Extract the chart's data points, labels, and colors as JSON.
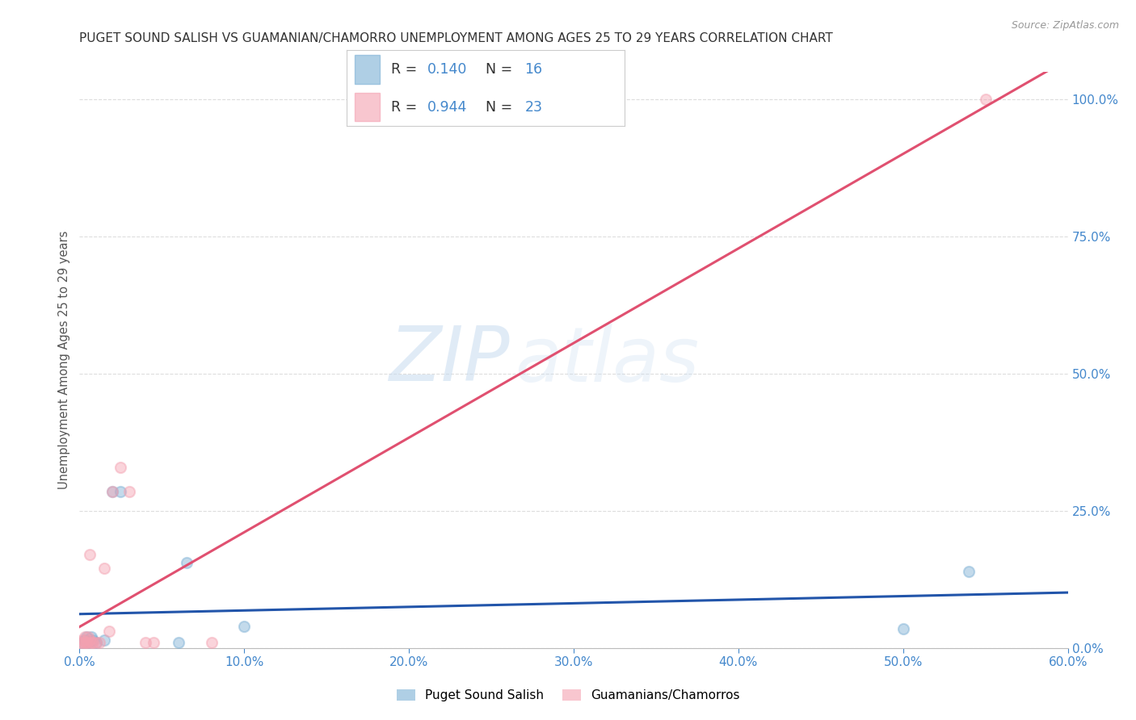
{
  "title": "PUGET SOUND SALISH VS GUAMANIAN/CHAMORRO UNEMPLOYMENT AMONG AGES 25 TO 29 YEARS CORRELATION CHART",
  "source": "Source: ZipAtlas.com",
  "ylabel": "Unemployment Among Ages 25 to 29 years",
  "watermark_zip": "ZIP",
  "watermark_atlas": "atlas",
  "legend_entries": [
    "Puget Sound Salish",
    "Guamanians/Chamorros"
  ],
  "legend_r_n": [
    {
      "R": "0.140",
      "N": "16"
    },
    {
      "R": "0.944",
      "N": "23"
    }
  ],
  "blue_color": "#7BAFD4",
  "pink_color": "#F4A0B0",
  "blue_line_color": "#2255AA",
  "pink_line_color": "#E05070",
  "title_color": "#333333",
  "axis_label_color": "#555555",
  "right_axis_color": "#4488CC",
  "source_color": "#999999",
  "xlim": [
    0.0,
    0.6
  ],
  "ylim": [
    0.0,
    1.05
  ],
  "xticks": [
    0.0,
    0.1,
    0.2,
    0.3,
    0.4,
    0.5,
    0.6
  ],
  "yticks_right": [
    0.0,
    0.25,
    0.5,
    0.75,
    1.0
  ],
  "blue_scatter_x": [
    0.002,
    0.003,
    0.004,
    0.005,
    0.006,
    0.007,
    0.008,
    0.01,
    0.015,
    0.02,
    0.025,
    0.06,
    0.065,
    0.1,
    0.5,
    0.54
  ],
  "blue_scatter_y": [
    0.01,
    0.015,
    0.02,
    0.01,
    0.015,
    0.02,
    0.015,
    0.01,
    0.015,
    0.285,
    0.285,
    0.01,
    0.155,
    0.04,
    0.035,
    0.14
  ],
  "pink_scatter_x": [
    0.001,
    0.002,
    0.002,
    0.003,
    0.003,
    0.004,
    0.005,
    0.005,
    0.006,
    0.006,
    0.007,
    0.008,
    0.01,
    0.012,
    0.015,
    0.018,
    0.02,
    0.025,
    0.03,
    0.04,
    0.045,
    0.08,
    0.55
  ],
  "pink_scatter_y": [
    0.01,
    0.01,
    0.015,
    0.01,
    0.02,
    0.01,
    0.02,
    0.01,
    0.015,
    0.17,
    0.01,
    0.01,
    0.01,
    0.01,
    0.145,
    0.03,
    0.285,
    0.33,
    0.285,
    0.01,
    0.01,
    0.01,
    1.0
  ],
  "grid_color": "#DDDDDD",
  "background_color": "#FFFFFF",
  "marker_size": 90,
  "marker_alpha": 0.45,
  "marker_edge_alpha": 0.7
}
